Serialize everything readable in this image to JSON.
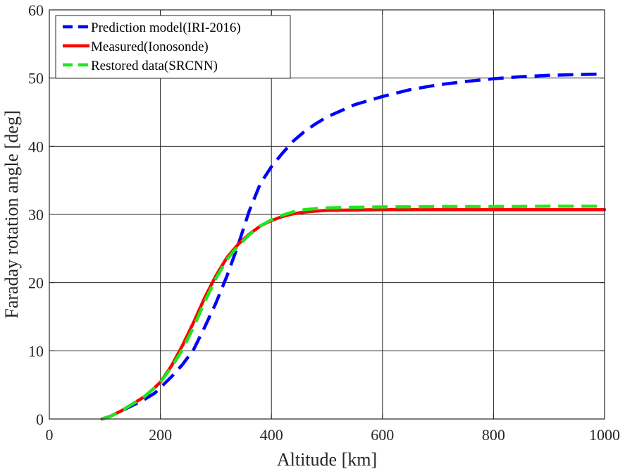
{
  "chart_data": {
    "type": "line",
    "title": "",
    "xlabel": "Altitude [km]",
    "ylabel": "Faraday rotation angle [deg]",
    "xlim": [
      0,
      1000
    ],
    "ylim": [
      0,
      60
    ],
    "xticks": [
      0,
      200,
      400,
      600,
      800,
      1000
    ],
    "yticks": [
      0,
      10,
      20,
      30,
      40,
      50,
      60
    ],
    "grid": true,
    "legend_position": "top-left",
    "series": [
      {
        "name": "Prediction model(IRI-2016)",
        "color": "#0000ff",
        "style": "dashed",
        "x": [
          95,
          110,
          130,
          150,
          170,
          190,
          200,
          220,
          240,
          260,
          280,
          300,
          320,
          340,
          360,
          380,
          400,
          420,
          440,
          460,
          480,
          500,
          550,
          600,
          650,
          700,
          750,
          800,
          850,
          900,
          950,
          1000
        ],
        "y": [
          0,
          0.4,
          1.2,
          2.0,
          2.8,
          3.8,
          4.6,
          6.2,
          8.0,
          10.2,
          13.5,
          17.0,
          21.0,
          25.5,
          30.5,
          34.5,
          37.0,
          39.0,
          40.8,
          42.2,
          43.3,
          44.3,
          46.1,
          47.3,
          48.3,
          49.0,
          49.5,
          49.9,
          50.2,
          50.4,
          50.5,
          50.6
        ]
      },
      {
        "name": "Measured(Ionosonde)",
        "color": "#ff0000",
        "style": "solid",
        "x": [
          95,
          110,
          130,
          150,
          170,
          190,
          200,
          220,
          240,
          260,
          280,
          300,
          320,
          340,
          360,
          380,
          400,
          420,
          440,
          460,
          480,
          500,
          550,
          600,
          700,
          800,
          900,
          1000
        ],
        "y": [
          0,
          0.4,
          1.2,
          2.2,
          3.2,
          4.6,
          5.4,
          7.8,
          10.8,
          14.2,
          17.8,
          21.0,
          23.7,
          25.6,
          27.1,
          28.3,
          29.1,
          29.7,
          30.1,
          30.35,
          30.5,
          30.6,
          30.65,
          30.7,
          30.7,
          30.7,
          30.7,
          30.7
        ]
      },
      {
        "name": "Restored data(SRCNN)",
        "color": "#1ee61e",
        "style": "dashed",
        "x": [
          95,
          110,
          130,
          150,
          170,
          190,
          200,
          220,
          240,
          260,
          280,
          300,
          320,
          340,
          360,
          380,
          400,
          420,
          440,
          460,
          480,
          500,
          550,
          600,
          700,
          800,
          900,
          1000
        ],
        "y": [
          0,
          0.4,
          1.2,
          2.2,
          3.2,
          4.6,
          5.4,
          7.6,
          10.2,
          13.5,
          17.2,
          20.6,
          23.4,
          25.4,
          27.0,
          28.3,
          29.2,
          29.9,
          30.4,
          30.7,
          30.85,
          30.95,
          31.05,
          31.1,
          31.15,
          31.15,
          31.2,
          31.2
        ]
      }
    ]
  }
}
